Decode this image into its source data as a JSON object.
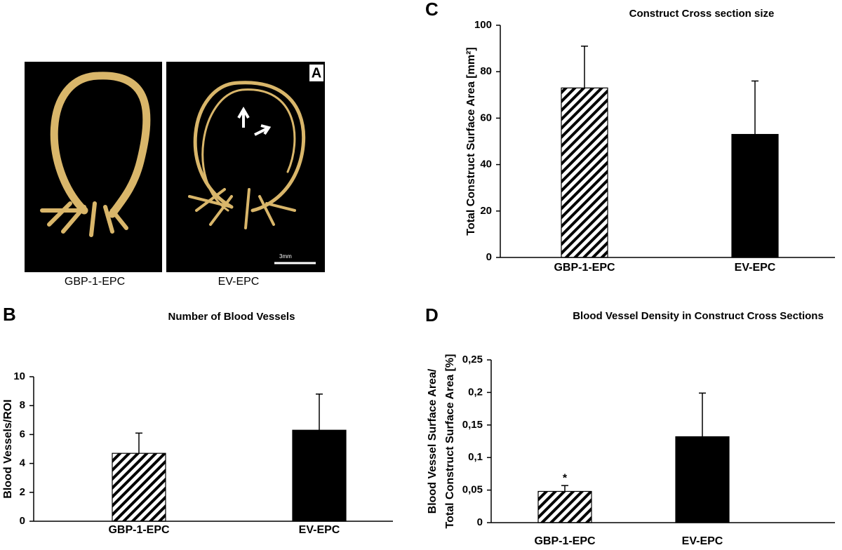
{
  "figure": {
    "panel_labels": [
      "A",
      "B",
      "C",
      "D"
    ],
    "image": {
      "labels": [
        "GBP-1-EPC",
        "EV-EPC"
      ],
      "scale_bar": "3mm"
    }
  },
  "chart_data": [
    {
      "type": "bar",
      "title": "Number of Blood Vessels",
      "ylabel": "Blood Vessels/ROI",
      "categories": [
        "GBP-1-EPC",
        "EV-EPC"
      ],
      "values": [
        4.7,
        6.3
      ],
      "errors": [
        1.4,
        2.5
      ],
      "bar_styles": [
        "hatch",
        "#000000"
      ],
      "ylim": [
        0,
        10
      ],
      "yticks": [
        0,
        2,
        4,
        6,
        8,
        10
      ]
    },
    {
      "type": "bar",
      "title": "Construct Cross section size",
      "ylabel": "Total Construct Surface Area [mm²]",
      "categories": [
        "GBP-1-EPC",
        "EV-EPC"
      ],
      "values": [
        73,
        53
      ],
      "errors": [
        18,
        23
      ],
      "bar_styles": [
        "hatch",
        "#000000"
      ],
      "ylim": [
        0,
        100
      ],
      "yticks": [
        0,
        20,
        40,
        60,
        80,
        100
      ]
    },
    {
      "type": "bar",
      "title": "Blood Vessel Density in Construct Cross Sections",
      "ylabel": [
        "Blood Vessel Surface Area/",
        "Total Construct Surface Area [%]"
      ],
      "categories": [
        "GBP-1-EPC",
        "EV-EPC"
      ],
      "values": [
        0.048,
        0.132
      ],
      "errors": [
        0.009,
        0.067
      ],
      "annotations": [
        "*",
        null
      ],
      "bar_styles": [
        "hatch",
        "#000000"
      ],
      "ylim": [
        0,
        0.25
      ],
      "yticks": [
        0,
        {
          "value": 0.05,
          "label": "0,05"
        },
        {
          "value": 0.1,
          "label": "0,1"
        },
        {
          "value": 0.15,
          "label": "0,15"
        },
        {
          "value": 0.2,
          "label": "0,2"
        },
        {
          "value": 0.25,
          "label": "0,25"
        }
      ]
    }
  ]
}
